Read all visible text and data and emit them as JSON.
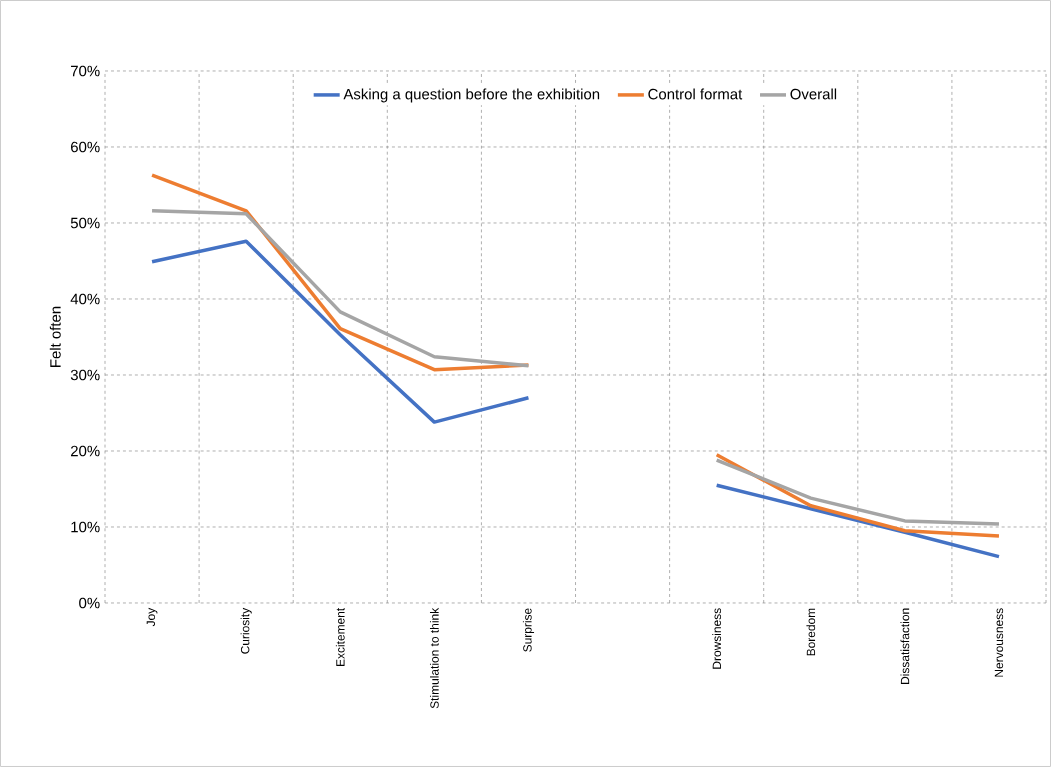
{
  "chart_data": {
    "type": "line",
    "ylabel": "Felt often",
    "categories": [
      "Joy",
      "Curiosity",
      "Excitement",
      "Stimulation to think",
      "Surprise",
      null,
      "Drowsiness",
      "Boredom",
      "Dissatisfaction",
      "Nervousness"
    ],
    "series": [
      {
        "name": "Asking a question before the exhibition",
        "color": "#4472c4",
        "values": [
          44.9,
          47.6,
          35.3,
          23.8,
          27.0,
          null,
          15.5,
          12.4,
          9.3,
          6.1
        ]
      },
      {
        "name": "Control format",
        "color": "#ed7d31",
        "values": [
          56.3,
          51.6,
          36.1,
          30.7,
          31.3,
          null,
          19.5,
          12.8,
          9.5,
          8.8
        ]
      },
      {
        "name": "Overall",
        "color": "#a5a5a5",
        "values": [
          51.6,
          51.2,
          38.3,
          32.4,
          31.2,
          null,
          18.8,
          13.8,
          10.8,
          10.4
        ]
      }
    ],
    "ylim": [
      0,
      70
    ],
    "yticks": [
      {
        "value": 0,
        "label": "0%"
      },
      {
        "value": 10,
        "label": "10%"
      },
      {
        "value": 20,
        "label": "20%"
      },
      {
        "value": 30,
        "label": "30%"
      },
      {
        "value": 40,
        "label": "40%"
      },
      {
        "value": 50,
        "label": "50%"
      },
      {
        "value": 60,
        "label": "60%"
      },
      {
        "value": 70,
        "label": "70%"
      }
    ],
    "grid": true,
    "legend": "top",
    "marker": "none",
    "line_style": "solid"
  }
}
